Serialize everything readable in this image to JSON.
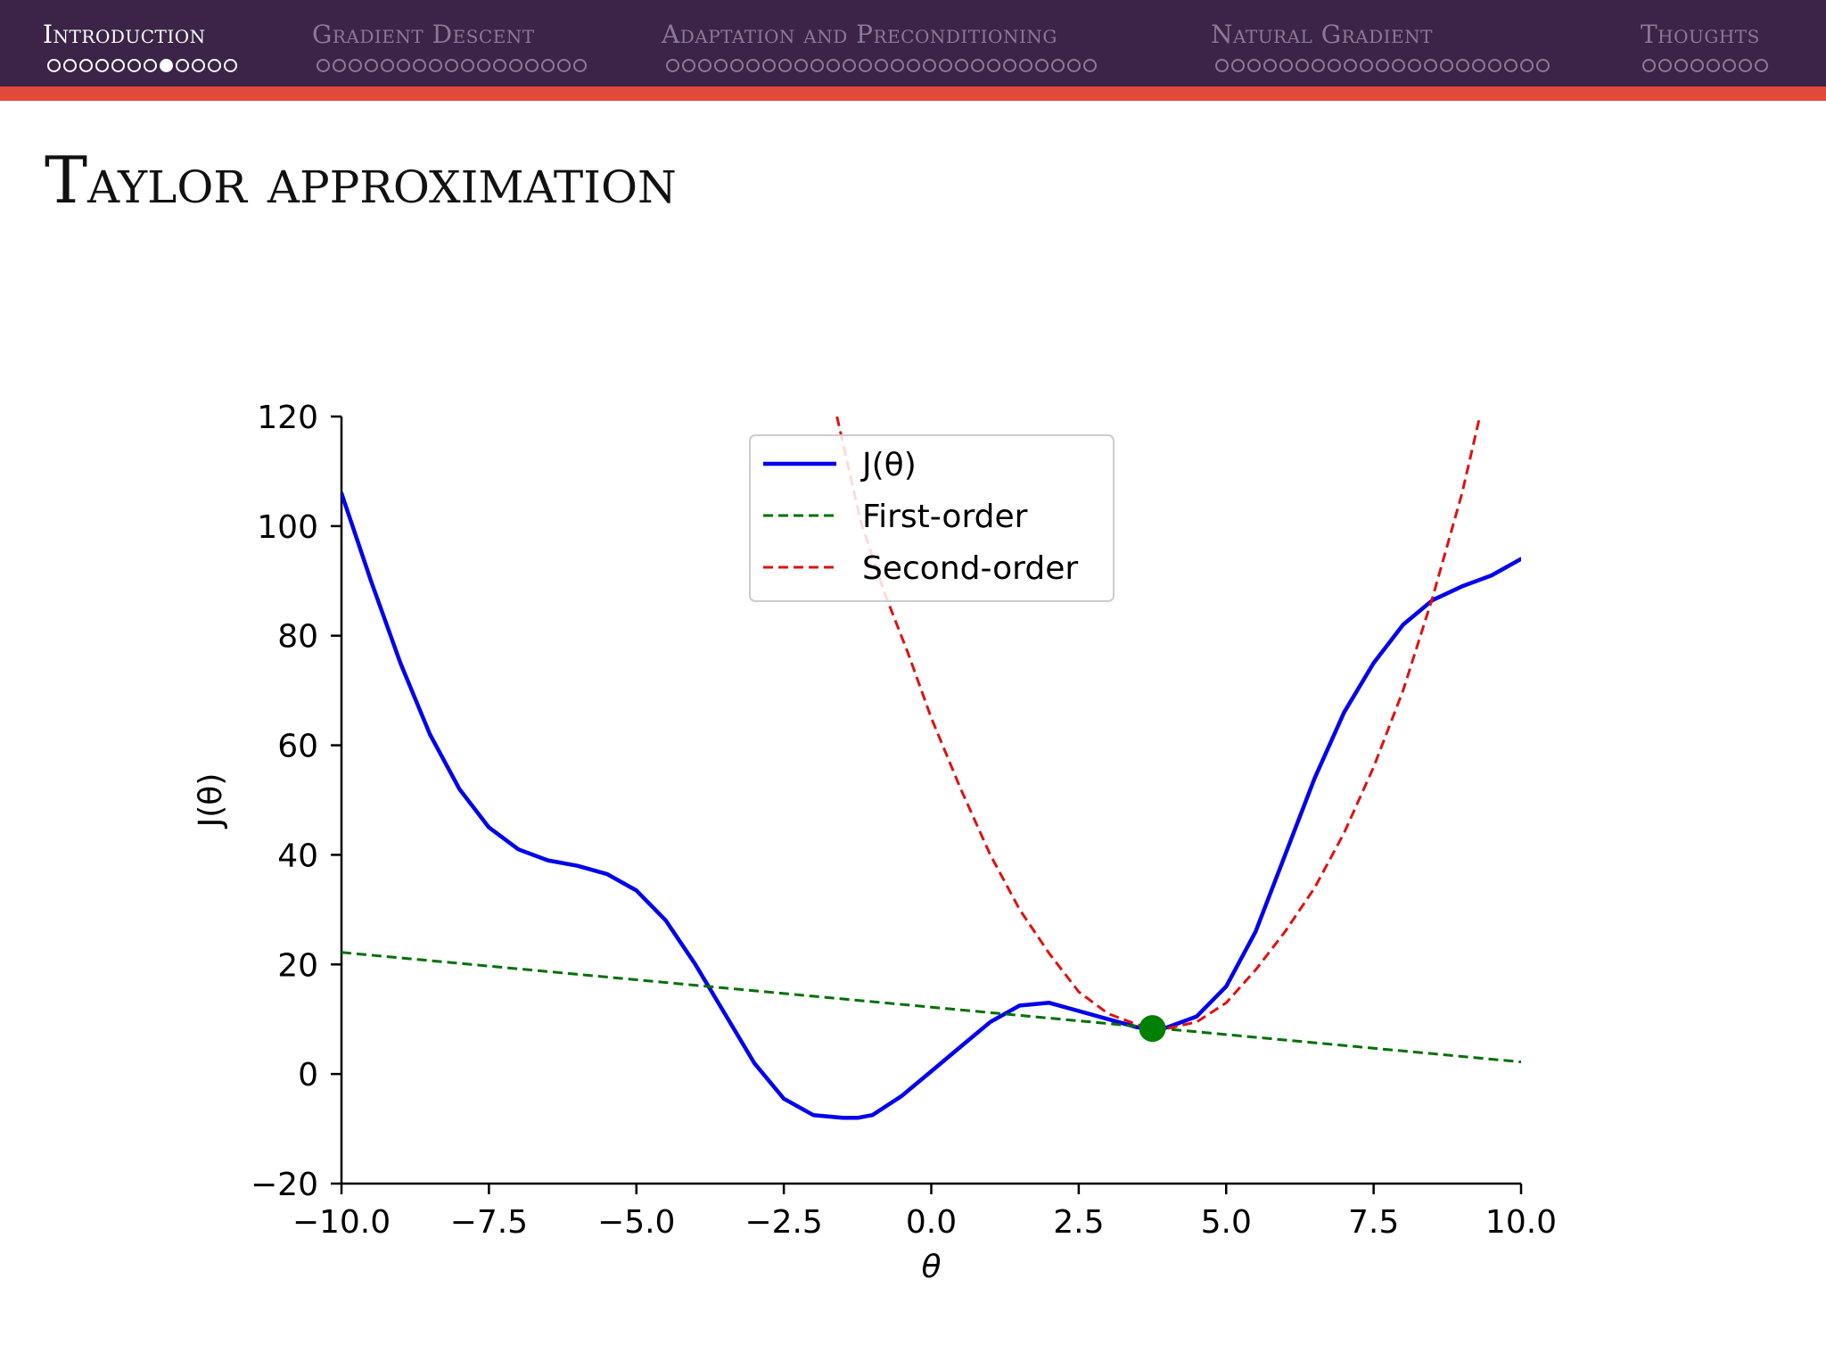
{
  "nav": {
    "sections": [
      {
        "label": "Introduction",
        "dots": 12,
        "active_dot": 8,
        "active": true
      },
      {
        "label": "Gradient Descent",
        "dots": 17,
        "active_dot": null,
        "active": false
      },
      {
        "label": "Adaptation and Preconditioning",
        "dots": 27,
        "active_dot": null,
        "active": false
      },
      {
        "label": "Natural Gradient",
        "dots": 21,
        "active_dot": null,
        "active": false
      },
      {
        "label": "Thoughts",
        "dots": 8,
        "active_dot": null,
        "active": false
      }
    ]
  },
  "slide": {
    "title": "Taylor approximation"
  },
  "colors": {
    "nav_background": "#3b2448",
    "nav_accent": "#e3493a",
    "series_true": "#0000ee",
    "series_first": "#007000",
    "series_second": "#e01010",
    "point": "#008000"
  },
  "chart_data": {
    "type": "line",
    "title": "",
    "xlabel": "θ",
    "ylabel": "J(θ)",
    "xlim": [
      -10,
      10
    ],
    "ylim": [
      -20,
      120
    ],
    "xticks": [
      -10,
      -7.5,
      -5,
      -2.5,
      0,
      2.5,
      5,
      7.5,
      10
    ],
    "xtick_labels": [
      "−10.0",
      "−7.5",
      "−5.0",
      "−2.5",
      "0.0",
      "2.5",
      "5.0",
      "7.5",
      "10.0"
    ],
    "yticks": [
      -20,
      0,
      20,
      40,
      60,
      80,
      100,
      120
    ],
    "ytick_labels": [
      "−20",
      "0",
      "20",
      "40",
      "60",
      "80",
      "100",
      "120"
    ],
    "legend_position": "top-center",
    "series": [
      {
        "name": "J(θ)",
        "style": "solid",
        "x": [
          -10,
          -9.5,
          -9,
          -8.5,
          -8,
          -7.5,
          -7,
          -6.5,
          -6,
          -5.5,
          -5,
          -4.5,
          -4,
          -3.5,
          -3,
          -2.5,
          -2,
          -1.5,
          -1.25,
          -1,
          -0.5,
          0,
          0.5,
          1,
          1.5,
          2,
          2.5,
          3,
          3.5,
          3.75,
          4,
          4.5,
          5,
          5.5,
          6,
          6.5,
          7,
          7.5,
          8,
          8.5,
          9,
          9.5,
          10
        ],
        "y": [
          106,
          90,
          75,
          62,
          52,
          45,
          41,
          39,
          38,
          36.5,
          33.5,
          28,
          20,
          11,
          2,
          -4.5,
          -7.5,
          -8,
          -8,
          -7.5,
          -4,
          0.5,
          5,
          9.5,
          12.5,
          13,
          11.5,
          10,
          8.5,
          8.3,
          8.5,
          10.5,
          16,
          26,
          40,
          54,
          66,
          75,
          82,
          86.5,
          89,
          91,
          94
        ]
      },
      {
        "name": "First-order",
        "style": "dashed",
        "x": [
          -10,
          10
        ],
        "y": [
          22.2,
          2.2
        ]
      },
      {
        "name": "Second-order",
        "style": "dashed",
        "x": [
          -1.6,
          -1.2,
          -0.8,
          -0.4,
          0,
          0.5,
          1,
          1.5,
          2,
          2.5,
          3,
          3.5,
          3.75,
          4,
          4.5,
          5,
          5.5,
          6,
          6.5,
          7,
          7.5,
          8,
          8.5,
          9,
          9.3
        ],
        "y": [
          120,
          101,
          88,
          77,
          65,
          52,
          40,
          30,
          22,
          15,
          11,
          9,
          8.3,
          8.3,
          9.5,
          13,
          19,
          26,
          34,
          44,
          56,
          70,
          87,
          106,
          120
        ]
      }
    ],
    "points": [
      {
        "x": 3.75,
        "y": 8.3
      }
    ]
  }
}
